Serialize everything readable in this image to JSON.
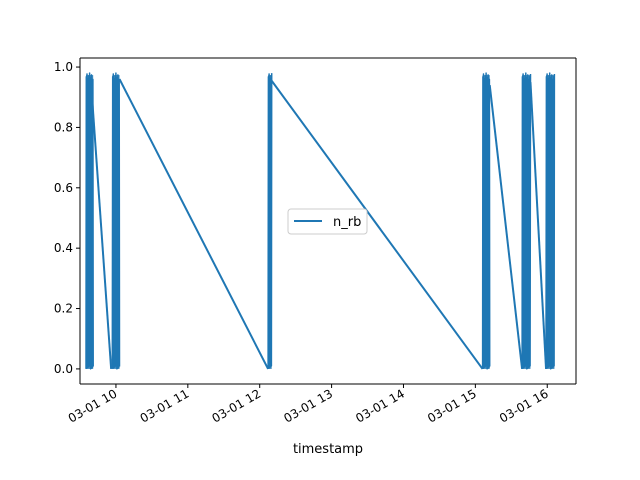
{
  "chart_data": {
    "type": "line",
    "xlabel": "timestamp",
    "ylabel": "",
    "title": "",
    "x_unit": "datetime",
    "xlim": [
      "03-01 09:30",
      "03-01 16:24"
    ],
    "ylim": [
      -0.05,
      1.03
    ],
    "x_ticks": [
      "03-01 10",
      "03-01 11",
      "03-01 12",
      "03-01 13",
      "03-01 14",
      "03-01 15",
      "03-01 16"
    ],
    "y_ticks": [
      "0.0",
      "0.2",
      "0.4",
      "0.6",
      "0.8",
      "1.0"
    ],
    "legend": {
      "position": "center",
      "entries": [
        "n_rb"
      ]
    },
    "grid": false,
    "series": [
      {
        "name": "n_rb",
        "color": "#1f77b4",
        "bursts": [
          {
            "start": "03-01 09:35",
            "end": "03-01 09:41",
            "low": 0.0,
            "high": 0.98
          },
          {
            "start": "03-01 09:57",
            "end": "03-01 10:03",
            "low": 0.0,
            "high": 0.98
          },
          {
            "start": "03-01 12:07",
            "end": "03-01 12:10",
            "low": 0.0,
            "high": 0.98
          },
          {
            "start": "03-01 15:06",
            "end": "03-01 15:12",
            "low": 0.0,
            "high": 0.98
          },
          {
            "start": "03-01 15:39",
            "end": "03-01 15:46",
            "low": 0.0,
            "high": 0.98
          },
          {
            "start": "03-01 15:59",
            "end": "03-01 16:06",
            "low": 0.0,
            "high": 0.98
          }
        ],
        "connectors": [
          {
            "from": [
              "03-01 09:39",
              0.96
            ],
            "to": [
              "03-01 09:56",
              0.0
            ]
          },
          {
            "from": [
              "03-01 10:03",
              0.96
            ],
            "to": [
              "03-01 12:07",
              0.0
            ]
          },
          {
            "from": [
              "03-01 12:09",
              0.96
            ],
            "to": [
              "03-01 15:06",
              0.0
            ]
          },
          {
            "from": [
              "03-01 15:12",
              0.94
            ],
            "to": [
              "03-01 15:39",
              0.0
            ]
          },
          {
            "from": [
              "03-01 15:46",
              0.95
            ],
            "to": [
              "03-01 15:59",
              0.0
            ]
          }
        ]
      }
    ]
  }
}
